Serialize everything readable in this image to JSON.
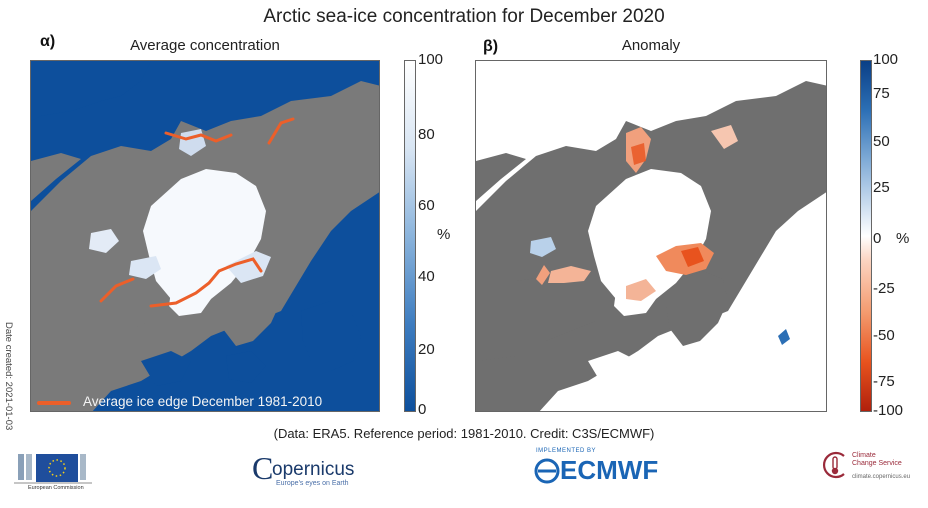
{
  "title": "Arctic sea-ice concentration for December 2020",
  "panel_a": {
    "letter": "α)",
    "title": "Average concentration",
    "colorbar": {
      "ticks": [
        "100",
        "80",
        "60",
        "40",
        "20",
        "0"
      ],
      "unit": "%"
    },
    "legend_label": "Average ice edge December 1981-2010",
    "date_created": "Date created: 2021-01-03"
  },
  "panel_b": {
    "letter": "β)",
    "title": "Anomaly",
    "colorbar": {
      "ticks": [
        "100",
        "75",
        "50",
        "25",
        "0",
        "-25",
        "-50",
        "-75",
        "-100"
      ],
      "unit": "%"
    }
  },
  "credit": "(Data: ERA5.  Reference period: 1981-2010.  Credit: C3S/ECMWF)",
  "logos": {
    "ec": {
      "name": "european-commission-logo",
      "small_text": "European Commission"
    },
    "copernicus": {
      "name": "copernicus-logo",
      "word": "opernicus",
      "initial": "C",
      "tagline": "Europe's eyes on Earth"
    },
    "ecmwf": {
      "name": "ecmwf-logo",
      "word": "ECMWF",
      "small_text": "IMPLEMENTED BY"
    },
    "c3s": {
      "name": "c3s-logo",
      "line1": "Climate",
      "line2": "Change Service",
      "url": "climate.copernicus.eu"
    }
  },
  "colors": {
    "ocean": "#0d4f9c",
    "land": "#7a7a7a",
    "ice": "#f6f9fd",
    "edge": "#ec5f2a",
    "anom_pos": "#2c6fb5",
    "anom_neg": "#e8531e"
  }
}
